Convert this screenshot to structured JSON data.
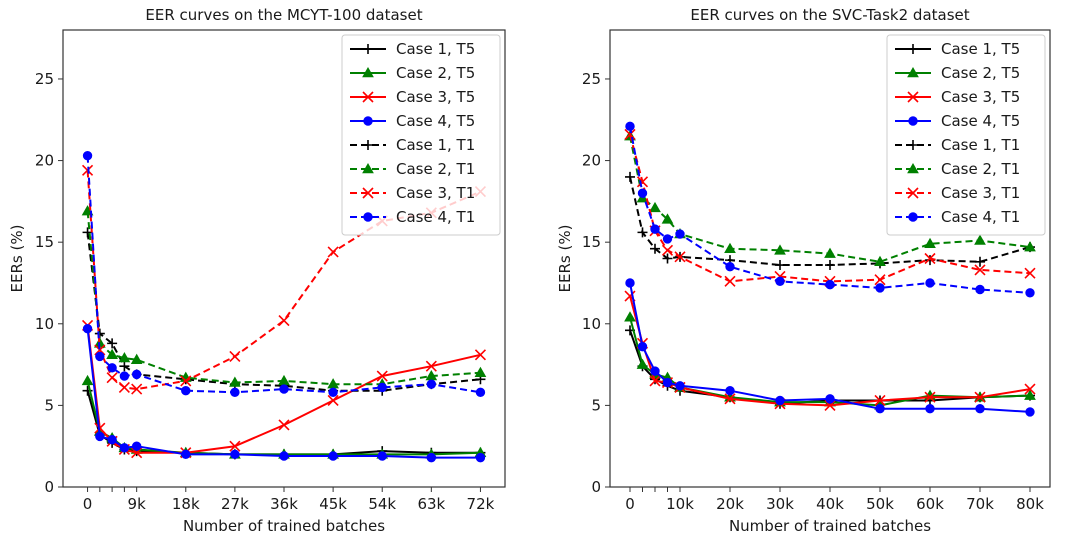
{
  "chart_data": [
    {
      "type": "line",
      "title": "EER curves on the MCYT-100 dataset",
      "xlabel": "Number of trained batches",
      "ylabel": "EERs (%)",
      "xlim": [
        -4.5,
        76.5
      ],
      "ylim": [
        0,
        28
      ],
      "x": [
        0,
        2.25,
        4.5,
        6.75,
        9,
        18,
        27,
        36,
        45,
        54,
        63,
        72
      ],
      "x_unit": "thousand batches",
      "x_ticks": [
        0,
        9,
        18,
        27,
        36,
        45,
        54,
        63,
        72
      ],
      "x_tick_labels": [
        "0",
        "9k",
        "18k",
        "27k",
        "36k",
        "45k",
        "54k",
        "63k",
        "72k"
      ],
      "x_minor_ticks": [
        2.25,
        4.5,
        6.75
      ],
      "y_ticks": [
        0,
        5,
        10,
        15,
        20,
        25
      ],
      "y_tick_labels": [
        "0",
        "5",
        "10",
        "15",
        "20",
        "25"
      ],
      "grid": false,
      "legend_position": "top-right",
      "series": [
        {
          "name": "Case 1, T5",
          "color": "#000000",
          "style": "solid",
          "marker": "plus",
          "values": [
            5.9,
            3.2,
            2.7,
            2.3,
            2.2,
            2.1,
            2.0,
            2.0,
            2.0,
            2.2,
            2.1,
            2.1
          ]
        },
        {
          "name": "Case 2, T5",
          "color": "#008000",
          "style": "solid",
          "marker": "triangle",
          "values": [
            6.5,
            3.4,
            3.0,
            2.4,
            2.3,
            2.1,
            2.0,
            2.0,
            2.0,
            2.0,
            2.0,
            2.1
          ]
        },
        {
          "name": "Case 3, T5",
          "color": "#ff0000",
          "style": "solid",
          "marker": "x",
          "values": [
            9.9,
            3.6,
            2.8,
            2.3,
            2.1,
            2.1,
            2.5,
            3.8,
            5.3,
            6.8,
            7.4,
            8.1
          ]
        },
        {
          "name": "Case 4, T5",
          "color": "#0000ff",
          "style": "solid",
          "marker": "circle",
          "values": [
            9.7,
            3.1,
            2.9,
            2.4,
            2.5,
            2.0,
            2.0,
            1.9,
            1.9,
            1.9,
            1.8,
            1.8
          ]
        },
        {
          "name": "Case 1, T1",
          "color": "#000000",
          "style": "dashed",
          "marker": "plus",
          "values": [
            15.6,
            9.4,
            8.8,
            7.4,
            6.9,
            6.6,
            6.3,
            6.2,
            5.9,
            5.9,
            6.3,
            6.6
          ]
        },
        {
          "name": "Case 2, T1",
          "color": "#008000",
          "style": "dashed",
          "marker": "triangle",
          "values": [
            16.9,
            8.8,
            8.1,
            7.9,
            7.8,
            6.7,
            6.4,
            6.5,
            6.3,
            6.3,
            6.8,
            7.0
          ]
        },
        {
          "name": "Case 3, T1",
          "color": "#ff0000",
          "style": "dashed",
          "marker": "x",
          "values": [
            19.4,
            8.4,
            6.7,
            6.1,
            6.0,
            6.5,
            8.0,
            10.2,
            14.4,
            16.3,
            16.8,
            18.1
          ]
        },
        {
          "name": "Case 4, T1",
          "color": "#0000ff",
          "style": "dashed",
          "marker": "circle",
          "values": [
            20.3,
            8.0,
            7.3,
            6.8,
            6.9,
            5.9,
            5.8,
            6.0,
            5.8,
            6.1,
            6.3,
            5.8
          ]
        }
      ]
    },
    {
      "type": "line",
      "title": "EER curves on the SVC-Task2 dataset",
      "xlabel": "Number of trained batches",
      "ylabel": "EERs (%)",
      "xlim": [
        -4,
        84
      ],
      "ylim": [
        0,
        28
      ],
      "x": [
        0,
        2.5,
        5,
        7.5,
        10,
        20,
        30,
        40,
        50,
        60,
        70,
        80
      ],
      "x_unit": "thousand batches",
      "x_ticks": [
        0,
        10,
        20,
        30,
        40,
        50,
        60,
        70,
        80
      ],
      "x_tick_labels": [
        "0",
        "10k",
        "20k",
        "30k",
        "40k",
        "50k",
        "60k",
        "70k",
        "80k"
      ],
      "x_minor_ticks": [
        2.5,
        5,
        7.5
      ],
      "y_ticks": [
        0,
        5,
        10,
        15,
        20,
        25
      ],
      "y_tick_labels": [
        "0",
        "5",
        "10",
        "15",
        "20",
        "25"
      ],
      "grid": false,
      "legend_position": "top-right",
      "series": [
        {
          "name": "Case 1, T5",
          "color": "#000000",
          "style": "solid",
          "marker": "plus",
          "values": [
            9.6,
            7.4,
            6.6,
            6.2,
            5.9,
            5.5,
            5.1,
            5.3,
            5.3,
            5.3,
            5.5,
            5.6
          ]
        },
        {
          "name": "Case 2, T5",
          "color": "#008000",
          "style": "solid",
          "marker": "triangle",
          "values": [
            10.4,
            7.5,
            6.9,
            6.7,
            6.1,
            5.5,
            5.2,
            5.2,
            5.0,
            5.6,
            5.5,
            5.6
          ]
        },
        {
          "name": "Case 3, T5",
          "color": "#ff0000",
          "style": "solid",
          "marker": "x",
          "values": [
            11.7,
            8.8,
            6.5,
            6.4,
            6.1,
            5.4,
            5.1,
            5.0,
            5.3,
            5.5,
            5.5,
            6.0
          ]
        },
        {
          "name": "Case 4, T5",
          "color": "#0000ff",
          "style": "solid",
          "marker": "circle",
          "values": [
            12.5,
            8.6,
            7.1,
            6.4,
            6.2,
            5.9,
            5.3,
            5.4,
            4.8,
            4.8,
            4.8,
            4.6
          ]
        },
        {
          "name": "Case 1, T1",
          "color": "#000000",
          "style": "dashed",
          "marker": "plus",
          "values": [
            19.0,
            15.6,
            14.6,
            14.0,
            14.1,
            13.9,
            13.6,
            13.6,
            13.7,
            13.9,
            13.8,
            14.7
          ]
        },
        {
          "name": "Case 2, T1",
          "color": "#008000",
          "style": "dashed",
          "marker": "triangle",
          "values": [
            21.5,
            17.7,
            17.1,
            16.4,
            15.5,
            14.6,
            14.5,
            14.3,
            13.8,
            14.9,
            15.1,
            14.7
          ]
        },
        {
          "name": "Case 3, T1",
          "color": "#ff0000",
          "style": "dashed",
          "marker": "x",
          "values": [
            21.6,
            18.7,
            15.7,
            14.5,
            14.1,
            12.6,
            12.9,
            12.6,
            12.7,
            14.0,
            13.3,
            13.1
          ]
        },
        {
          "name": "Case 4, T1",
          "color": "#0000ff",
          "style": "dashed",
          "marker": "circle",
          "values": [
            22.1,
            18.0,
            15.8,
            15.2,
            15.5,
            13.5,
            12.6,
            12.4,
            12.2,
            12.5,
            12.1,
            11.9
          ]
        }
      ]
    }
  ]
}
